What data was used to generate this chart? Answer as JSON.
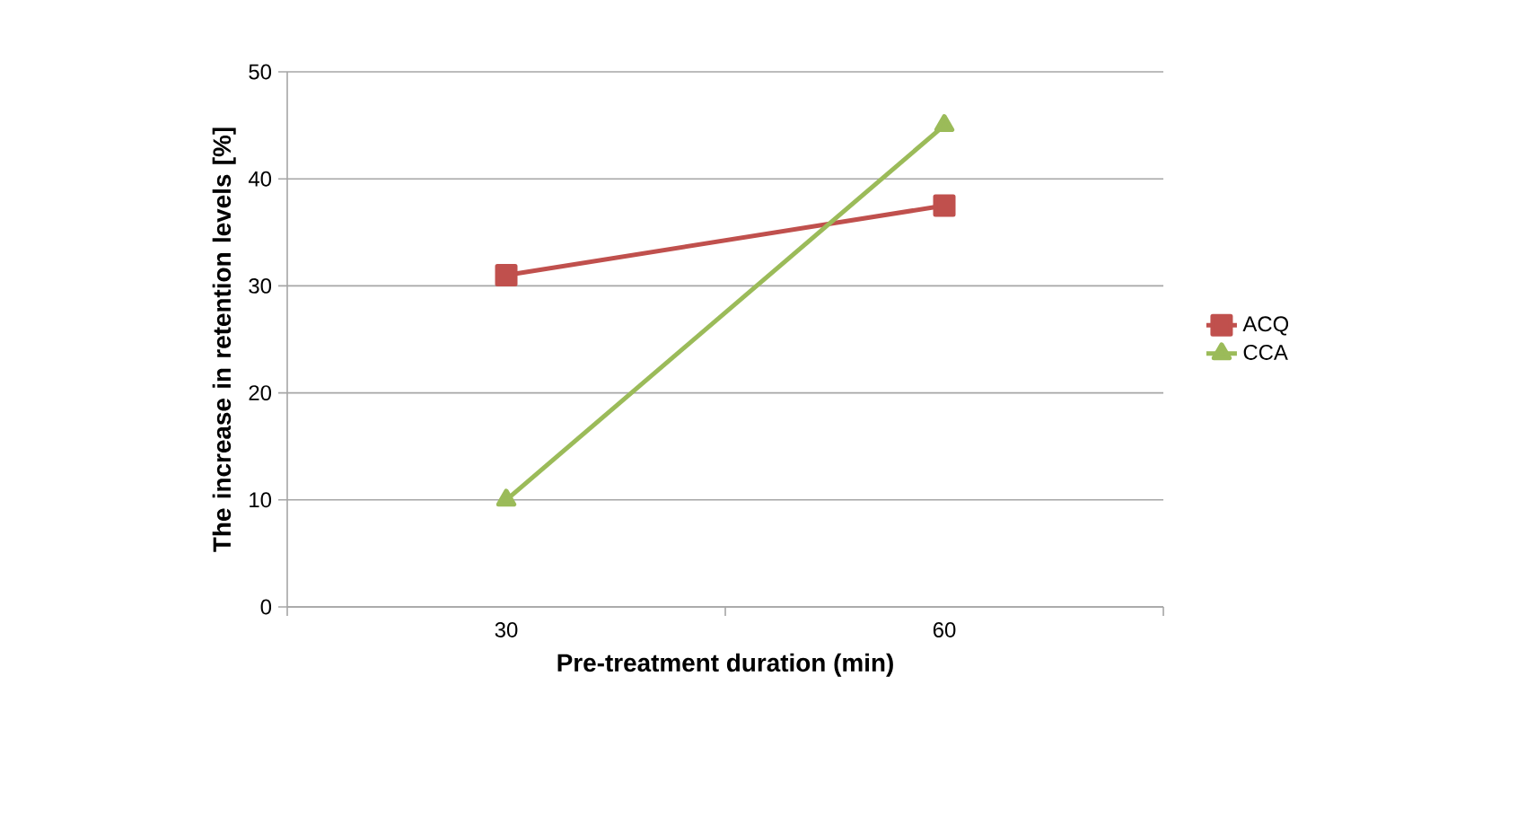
{
  "chart_data": {
    "type": "line",
    "xlabel": "Pre-treatment duration (min)",
    "ylabel": "The increase in retention levels [%]",
    "categories": [
      "30",
      "60"
    ],
    "series": [
      {
        "name": "ACQ",
        "color": "#c0504d",
        "values": [
          31,
          37.5
        ],
        "marker": "square"
      },
      {
        "name": "CCA",
        "color": "#9bbb59",
        "values": [
          10,
          45
        ],
        "marker": "triangle"
      }
    ],
    "ylim": [
      0,
      50
    ],
    "yticks": [
      0,
      10,
      20,
      30,
      40,
      50
    ],
    "grid": "y",
    "legend": "right",
    "line_style": "solid"
  }
}
